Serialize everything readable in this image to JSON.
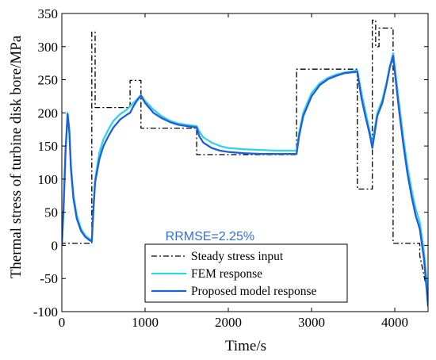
{
  "chart_data": {
    "type": "line",
    "title": "",
    "xlabel": "Time/s",
    "ylabel": "Thermal stress of turbine disk bore/MPa",
    "xlim": [
      0,
      4400
    ],
    "ylim": [
      -100,
      350
    ],
    "xticks": [
      0,
      1000,
      2000,
      3000,
      4000
    ],
    "yticks": [
      -100,
      -50,
      0,
      50,
      100,
      150,
      200,
      250,
      300,
      350
    ],
    "grid": false,
    "legend_position": "bottom-right",
    "annotation": {
      "text": "RRMSE=2.25%",
      "x": 1780,
      "y": 8,
      "color": "#2f6fe0"
    },
    "series": [
      {
        "name": "Steady stress input",
        "color": "#000000",
        "style": "dash-dot",
        "x": [
          0,
          5,
          10,
          360,
          360,
          400,
          400,
          820,
          820,
          950,
          950,
          1620,
          1620,
          2820,
          2820,
          3550,
          3550,
          3730,
          3730,
          3770,
          3770,
          3810,
          3810,
          3980,
          3980,
          4300,
          4300,
          4400
        ],
        "y": [
          0,
          0,
          3,
          3,
          322,
          322,
          208,
          208,
          249,
          249,
          177,
          177,
          137,
          137,
          266,
          266,
          85,
          85,
          340,
          340,
          300,
          300,
          328,
          328,
          3,
          3,
          -15,
          -75
        ]
      },
      {
        "name": "FEM response",
        "color": "#33d1f0",
        "style": "solid",
        "x": [
          0,
          20,
          45,
          70,
          90,
          110,
          140,
          180,
          230,
          280,
          330,
          360,
          380,
          400,
          450,
          500,
          560,
          620,
          700,
          780,
          820,
          860,
          900,
          950,
          1000,
          1100,
          1200,
          1300,
          1400,
          1500,
          1620,
          1650,
          1700,
          1800,
          1900,
          2000,
          2200,
          2400,
          2600,
          2820,
          2850,
          2900,
          3000,
          3100,
          3200,
          3300,
          3400,
          3550,
          3570,
          3600,
          3650,
          3700,
          3730,
          3750,
          3790,
          3850,
          3900,
          3940,
          3980,
          4000,
          4050,
          4100,
          4150,
          4200,
          4250,
          4300,
          4350,
          4400
        ],
        "y": [
          0,
          50,
          140,
          200,
          175,
          120,
          75,
          45,
          25,
          15,
          10,
          8,
          60,
          100,
          140,
          160,
          175,
          188,
          198,
          205,
          210,
          215,
          220,
          227,
          218,
          205,
          195,
          188,
          184,
          182,
          180,
          172,
          163,
          155,
          150,
          147,
          145,
          144,
          143,
          143,
          170,
          200,
          230,
          245,
          253,
          258,
          261,
          264,
          250,
          230,
          200,
          172,
          150,
          170,
          200,
          220,
          245,
          270,
          290,
          270,
          215,
          165,
          120,
          85,
          55,
          35,
          -10,
          -75
        ]
      },
      {
        "name": "Proposed model response",
        "color": "#1f5fd8",
        "style": "solid",
        "x": [
          0,
          20,
          45,
          70,
          90,
          110,
          140,
          180,
          230,
          280,
          330,
          360,
          380,
          400,
          450,
          500,
          560,
          620,
          700,
          780,
          820,
          860,
          900,
          950,
          1000,
          1100,
          1200,
          1300,
          1400,
          1500,
          1620,
          1650,
          1700,
          1800,
          1900,
          2000,
          2200,
          2400,
          2600,
          2820,
          2850,
          2900,
          3000,
          3100,
          3200,
          3300,
          3400,
          3550,
          3570,
          3600,
          3650,
          3700,
          3730,
          3750,
          3790,
          3850,
          3900,
          3940,
          3980,
          4000,
          4050,
          4100,
          4150,
          4200,
          4250,
          4300,
          4350,
          4400
        ],
        "y": [
          0,
          55,
          145,
          198,
          170,
          115,
          70,
          40,
          22,
          13,
          8,
          6,
          55,
          95,
          130,
          150,
          165,
          178,
          190,
          197,
          200,
          210,
          218,
          226,
          215,
          200,
          192,
          186,
          182,
          180,
          178,
          165,
          155,
          147,
          143,
          141,
          139,
          138,
          138,
          138,
          165,
          195,
          225,
          242,
          251,
          256,
          260,
          262,
          245,
          222,
          193,
          167,
          147,
          163,
          195,
          215,
          242,
          268,
          286,
          262,
          205,
          155,
          110,
          75,
          45,
          25,
          -20,
          -92
        ]
      }
    ]
  }
}
